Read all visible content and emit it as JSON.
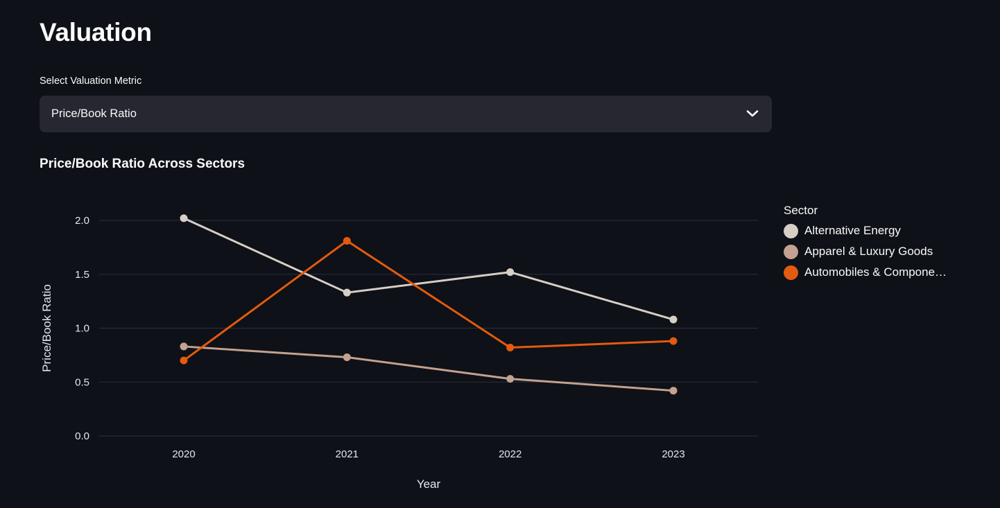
{
  "page": {
    "title": "Valuation"
  },
  "colors": {
    "background": "#0e1117",
    "surface": "#262730",
    "text": "#fafafa",
    "axis_text": "#e4e7ed",
    "grid": "#2b3140"
  },
  "metric_select": {
    "label": "Select Valuation Metric",
    "value": "Price/Book Ratio",
    "chevron_icon": "chevron-down"
  },
  "section": {
    "heading": "Price/Book Ratio Across Sectors"
  },
  "chart_data": {
    "type": "line",
    "x": [
      2020,
      2021,
      2022,
      2023
    ],
    "xlabel": "Year",
    "ylabel": "Price/Book Ratio",
    "ylim": [
      0.0,
      2.0
    ],
    "yticks": [
      0.0,
      0.5,
      1.0,
      1.5,
      2.0
    ],
    "grid": true,
    "legend_title": "Sector",
    "legend_position": "right",
    "series": [
      {
        "name": "Alternative Energy",
        "color": "#d7cec5",
        "values": [
          2.02,
          1.33,
          1.52,
          1.08
        ]
      },
      {
        "name": "Apparel & Luxury Goods",
        "color": "#c4a190",
        "values": [
          0.83,
          0.73,
          0.53,
          0.42
        ]
      },
      {
        "name": "Automobiles & Compone…",
        "color": "#e45a0f",
        "values": [
          0.7,
          1.81,
          0.82,
          0.88
        ]
      }
    ]
  }
}
